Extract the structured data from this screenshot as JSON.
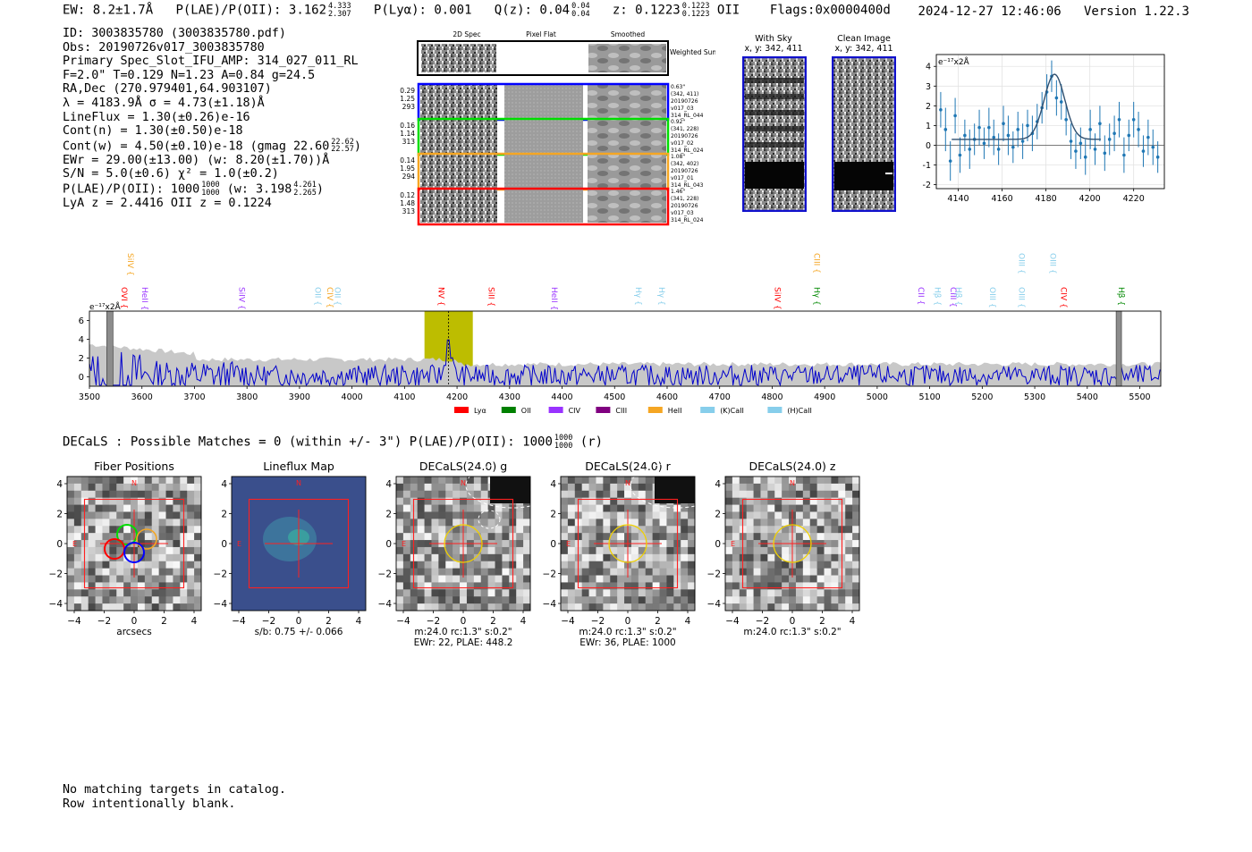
{
  "header": {
    "ew": "EW: 8.2±1.7Å",
    "plae_label": "P(LAE)/P(OII): 3.162",
    "plae_hi": "4.333",
    "plae_lo": "2.307",
    "plya": "P(Lyα): 0.001",
    "qz_label": "Q(z): 0.04",
    "qz_hi": "0.04",
    "qz_lo": "0.04",
    "z_label": "z: 0.1223",
    "z_hi": "0.1223",
    "z_lo": "0.1223",
    "z_line": "OII",
    "flags": "Flags:0x0000400d",
    "datetime": "2024-12-27 12:46:06",
    "version": "Version 1.22.3"
  },
  "info": {
    "id": "ID: 3003835780 (3003835780.pdf)",
    "obs": "Obs: 20190726v017_3003835780",
    "primary": "Primary Spec_Slot_IFU_AMP: 314_027_011_RL",
    "params": "F=2.0\"  T=0.129  N=1.23  A=0.84  g=24.5",
    "radec": "RA,Dec (270.979401,64.903107)",
    "lambda": "λ = 4183.9Å   σ = 4.73(±1.18)Å",
    "lineflux": "LineFlux = 1.30(±0.26)e-16",
    "contn": "Cont(n) = 1.30(±0.50)e-18",
    "contw": "Cont(w) = 4.50(±0.10)e-18 (gmag 22.60",
    "gmag_hi": "22.62",
    "gmag_lo": "22.57",
    "ewr": "EWr = 29.00(±13.00) (w: 8.20(±1.70))Å",
    "sn": "S/N = 5.0(±0.6)  χ² = 1.0(±0.2)",
    "plae": "P(LAE)/P(OII): 1000",
    "plae_hi": "1000",
    "plae_lo": "1000",
    "plae_w": "(w: 3.198",
    "plae_w_hi": "4.261",
    "plae_w_lo": "2.265",
    "lya_z": "LyA z = 2.4416   OII z = 0.1224"
  },
  "cutouts": {
    "col_2d": "2D Spec",
    "col_flat": "Pixel Flat",
    "col_smooth": "Smoothed",
    "weighted_sum": "Weighted Sum",
    "rows": [
      {
        "v1": "0.29",
        "v2": "1.25",
        "v3": "293",
        "color": "#0000ff",
        "info1": "0.63\"",
        "info2": "(342, 411)",
        "info3": "20190726",
        "info4": "v017_03",
        "info5": "314_RL_044"
      },
      {
        "v1": "0.16",
        "v2": "1.14",
        "v3": "313",
        "color": "#00dd00",
        "info1": "0.92\"",
        "info2": "(341, 228)",
        "info3": "20190726",
        "info4": "v017_02",
        "info5": "314_RL_024"
      },
      {
        "v1": "0.14",
        "v2": "1.95",
        "v3": "294",
        "color": "#f5a623",
        "info1": "1.08\"",
        "info2": "(342, 402)",
        "info3": "20190726",
        "info4": "v017_01",
        "info5": "314_RL_043"
      },
      {
        "v1": "0.12",
        "v2": "1.48",
        "v3": "313",
        "color": "#ff0000",
        "info1": "1.46\"",
        "info2": "(341, 228)",
        "info3": "20190726",
        "info4": "v017_03",
        "info5": "314_RL_024"
      }
    ]
  },
  "sky": {
    "with_sky_title": "With Sky",
    "with_sky_xy": "x, y: 342, 411",
    "clean_title": "Clean Image",
    "clean_xy": "x, y: 342, 411"
  },
  "chart_data": [
    {
      "type": "scatter",
      "title": "",
      "ylabel": "e⁻¹⁷x2Å",
      "xlim": [
        4130,
        4234
      ],
      "ylim": [
        -2.2,
        4.6
      ],
      "xticks": [
        4140,
        4160,
        4180,
        4200,
        4220
      ],
      "yticks": [
        -2,
        -1,
        0,
        1,
        2,
        3,
        4
      ],
      "grid": true,
      "points": [
        {
          "x": 4132,
          "y": 1.8,
          "e": 0.9
        },
        {
          "x": 4134.2,
          "y": 0.8,
          "e": 1.1
        },
        {
          "x": 4136.4,
          "y": -0.8,
          "e": 1.0
        },
        {
          "x": 4138.6,
          "y": 1.5,
          "e": 0.9
        },
        {
          "x": 4140.8,
          "y": -0.5,
          "e": 0.9
        },
        {
          "x": 4143,
          "y": 0.5,
          "e": 0.8
        },
        {
          "x": 4145.2,
          "y": -0.2,
          "e": 1.0
        },
        {
          "x": 4147.4,
          "y": 0.3,
          "e": 0.8
        },
        {
          "x": 4149.6,
          "y": 0.9,
          "e": 0.9
        },
        {
          "x": 4151.8,
          "y": 0.1,
          "e": 0.8
        },
        {
          "x": 4154,
          "y": 0.9,
          "e": 1.0
        },
        {
          "x": 4156.2,
          "y": 0.4,
          "e": 0.9
        },
        {
          "x": 4158.4,
          "y": -0.2,
          "e": 0.8
        },
        {
          "x": 4160.6,
          "y": 1.1,
          "e": 0.9
        },
        {
          "x": 4162.8,
          "y": 0.5,
          "e": 1.0
        },
        {
          "x": 4165,
          "y": -0.1,
          "e": 0.8
        },
        {
          "x": 4167.2,
          "y": 0.8,
          "e": 0.9
        },
        {
          "x": 4169.4,
          "y": 0.2,
          "e": 0.9
        },
        {
          "x": 4171.6,
          "y": 1.0,
          "e": 0.8
        },
        {
          "x": 4173.8,
          "y": 0.6,
          "e": 0.9
        },
        {
          "x": 4176,
          "y": 1.2,
          "e": 0.9
        },
        {
          "x": 4178.2,
          "y": 1.9,
          "e": 0.8
        },
        {
          "x": 4180.4,
          "y": 2.7,
          "e": 0.9
        },
        {
          "x": 4182.6,
          "y": 3.5,
          "e": 0.8
        },
        {
          "x": 4184.8,
          "y": 2.4,
          "e": 0.9
        },
        {
          "x": 4187,
          "y": 2.2,
          "e": 0.9
        },
        {
          "x": 4189.2,
          "y": 1.3,
          "e": 0.8
        },
        {
          "x": 4191.4,
          "y": 0.2,
          "e": 0.9
        },
        {
          "x": 4193.6,
          "y": -0.3,
          "e": 0.9
        },
        {
          "x": 4195.8,
          "y": 0.1,
          "e": 0.8
        },
        {
          "x": 4198,
          "y": -0.6,
          "e": 0.9
        },
        {
          "x": 4200.2,
          "y": 0.8,
          "e": 1.0
        },
        {
          "x": 4202.4,
          "y": -0.2,
          "e": 0.8
        },
        {
          "x": 4204.6,
          "y": 1.1,
          "e": 0.9
        },
        {
          "x": 4206.8,
          "y": -0.4,
          "e": 0.9
        },
        {
          "x": 4209,
          "y": 0.3,
          "e": 0.8
        },
        {
          "x": 4211.2,
          "y": 0.6,
          "e": 0.9
        },
        {
          "x": 4213.4,
          "y": 1.3,
          "e": 0.9
        },
        {
          "x": 4215.6,
          "y": -0.5,
          "e": 0.9
        },
        {
          "x": 4217.8,
          "y": 0.5,
          "e": 0.8
        },
        {
          "x": 4220,
          "y": 1.3,
          "e": 0.9
        },
        {
          "x": 4222.2,
          "y": 0.8,
          "e": 0.9
        },
        {
          "x": 4224.4,
          "y": -0.3,
          "e": 0.8
        },
        {
          "x": 4226.6,
          "y": 0.4,
          "e": 0.9
        },
        {
          "x": 4228.8,
          "y": -0.1,
          "e": 0.9
        },
        {
          "x": 4231,
          "y": -0.6,
          "e": 0.8
        }
      ],
      "fit": {
        "center": 4183.9,
        "sigma": 4.73,
        "amplitude": 3.3,
        "baseline": 0.3
      }
    },
    {
      "type": "line",
      "title": "",
      "ylabel": "e⁻¹⁷x2Å",
      "xlim": [
        3500,
        5540
      ],
      "ylim": [
        -1,
        7
      ],
      "xticks": [
        3500,
        3600,
        3700,
        3800,
        3900,
        4000,
        4100,
        4200,
        4300,
        4400,
        4500,
        4600,
        4700,
        4800,
        4900,
        5000,
        5100,
        5200,
        5300,
        5400,
        5500
      ],
      "yticks": [
        0,
        2,
        4,
        6
      ],
      "highlight_band": [
        4138,
        4230
      ],
      "line_marker": 4183.9,
      "line_labels": [
        {
          "x": 3568,
          "label": "SiIV",
          "color": "#f5a623",
          "row": 0
        },
        {
          "x": 3556,
          "label": "OVI",
          "color": "#ff0000",
          "row": 1
        },
        {
          "x": 3595,
          "label": "HeII",
          "color": "#9933ff",
          "row": 1
        },
        {
          "x": 3780,
          "label": "SiIV",
          "color": "#9933ff",
          "row": 1
        },
        {
          "x": 3925,
          "label": "OII",
          "color": "#87ceeb",
          "row": 1
        },
        {
          "x": 3948,
          "label": "CIV",
          "color": "#f5a623",
          "row": 1
        },
        {
          "x": 3962,
          "label": "OII",
          "color": "#87ceeb",
          "row": 1
        },
        {
          "x": 4160,
          "label": "NV",
          "color": "#ff0000",
          "row": 1
        },
        {
          "x": 4255,
          "label": "SiII",
          "color": "#ff0000",
          "row": 1
        },
        {
          "x": 4375,
          "label": "HeII",
          "color": "#9933ff",
          "row": 1
        },
        {
          "x": 4535,
          "label": "Hγ",
          "color": "#87ceeb",
          "row": 1
        },
        {
          "x": 4580,
          "label": "Hγ",
          "color": "#87ceeb",
          "row": 1
        },
        {
          "x": 4800,
          "label": "SiIV",
          "color": "#ff0000",
          "row": 1
        },
        {
          "x": 4875,
          "label": "CIII",
          "color": "#f5a623",
          "row": 0
        },
        {
          "x": 4875,
          "label": "Hγ",
          "color": "#008800",
          "row": 1
        },
        {
          "x": 5073,
          "label": "CII",
          "color": "#9933ff",
          "row": 1
        },
        {
          "x": 5105,
          "label": "Hβ",
          "color": "#87ceeb",
          "row": 1
        },
        {
          "x": 5135,
          "label": "CIII",
          "color": "#9933ff",
          "row": 1
        },
        {
          "x": 5145,
          "label": "Hβ",
          "color": "#87ceeb",
          "row": 1
        },
        {
          "x": 5210,
          "label": "OIII",
          "color": "#87ceeb",
          "row": 1
        },
        {
          "x": 5265,
          "label": "OIII",
          "color": "#87ceeb",
          "row": 0
        },
        {
          "x": 5265,
          "label": "OIII",
          "color": "#87ceeb",
          "row": 1
        },
        {
          "x": 5325,
          "label": "OIII",
          "color": "#87ceeb",
          "row": 0
        },
        {
          "x": 5345,
          "label": "CIV",
          "color": "#ff0000",
          "row": 1
        },
        {
          "x": 5455,
          "label": "Hβ",
          "color": "#008800",
          "row": 1
        }
      ],
      "legend": [
        {
          "label": "Lyα",
          "color": "#ff0000"
        },
        {
          "label": "OII",
          "color": "#008000"
        },
        {
          "label": "CIV",
          "color": "#9933ff"
        },
        {
          "label": "CIII",
          "color": "#800080"
        },
        {
          "label": "HeII",
          "color": "#f5a623"
        },
        {
          "label": "(K)CaII",
          "color": "#87ceeb"
        },
        {
          "label": "(H)CaII",
          "color": "#87ceeb"
        }
      ]
    }
  ],
  "decals": {
    "line": "DECaLS : Possible Matches = 0 (within +/- 3\")  P(LAE)/P(OII): 1000",
    "frac_hi": "1000",
    "frac_lo": "1000",
    "suffix": "(r)"
  },
  "panels": [
    {
      "title": "Fiber Positions",
      "caption1": "arcsecs",
      "caption2": ""
    },
    {
      "title": "Lineflux Map",
      "caption1": "s/b: 0.75 +/- 0.066",
      "caption2": ""
    },
    {
      "title": "DECaLS(24.0) g",
      "caption1": "m:24.0 rc:1.3\"  s:0.2\"",
      "caption2": "EWr: 22, PLAE: 448.2"
    },
    {
      "title": "DECaLS(24.0) r",
      "caption1": "m:24.0 rc:1.3\"  s:0.2\"",
      "caption2": "EWr: 36, PLAE: 1000"
    },
    {
      "title": "DECaLS(24.0) z",
      "caption1": "m:24.0 rc:1.3\"  s:0.2\"",
      "caption2": ""
    }
  ],
  "panel_axes": {
    "ticks": [
      "4",
      "2",
      "0",
      "−2",
      "−4"
    ],
    "xticks": [
      "−4",
      "−2",
      "0",
      "2",
      "4"
    ],
    "north": "N",
    "east": "E"
  },
  "footer": {
    "line1": "No matching targets in catalog.",
    "line2": "Row intentionally blank."
  }
}
